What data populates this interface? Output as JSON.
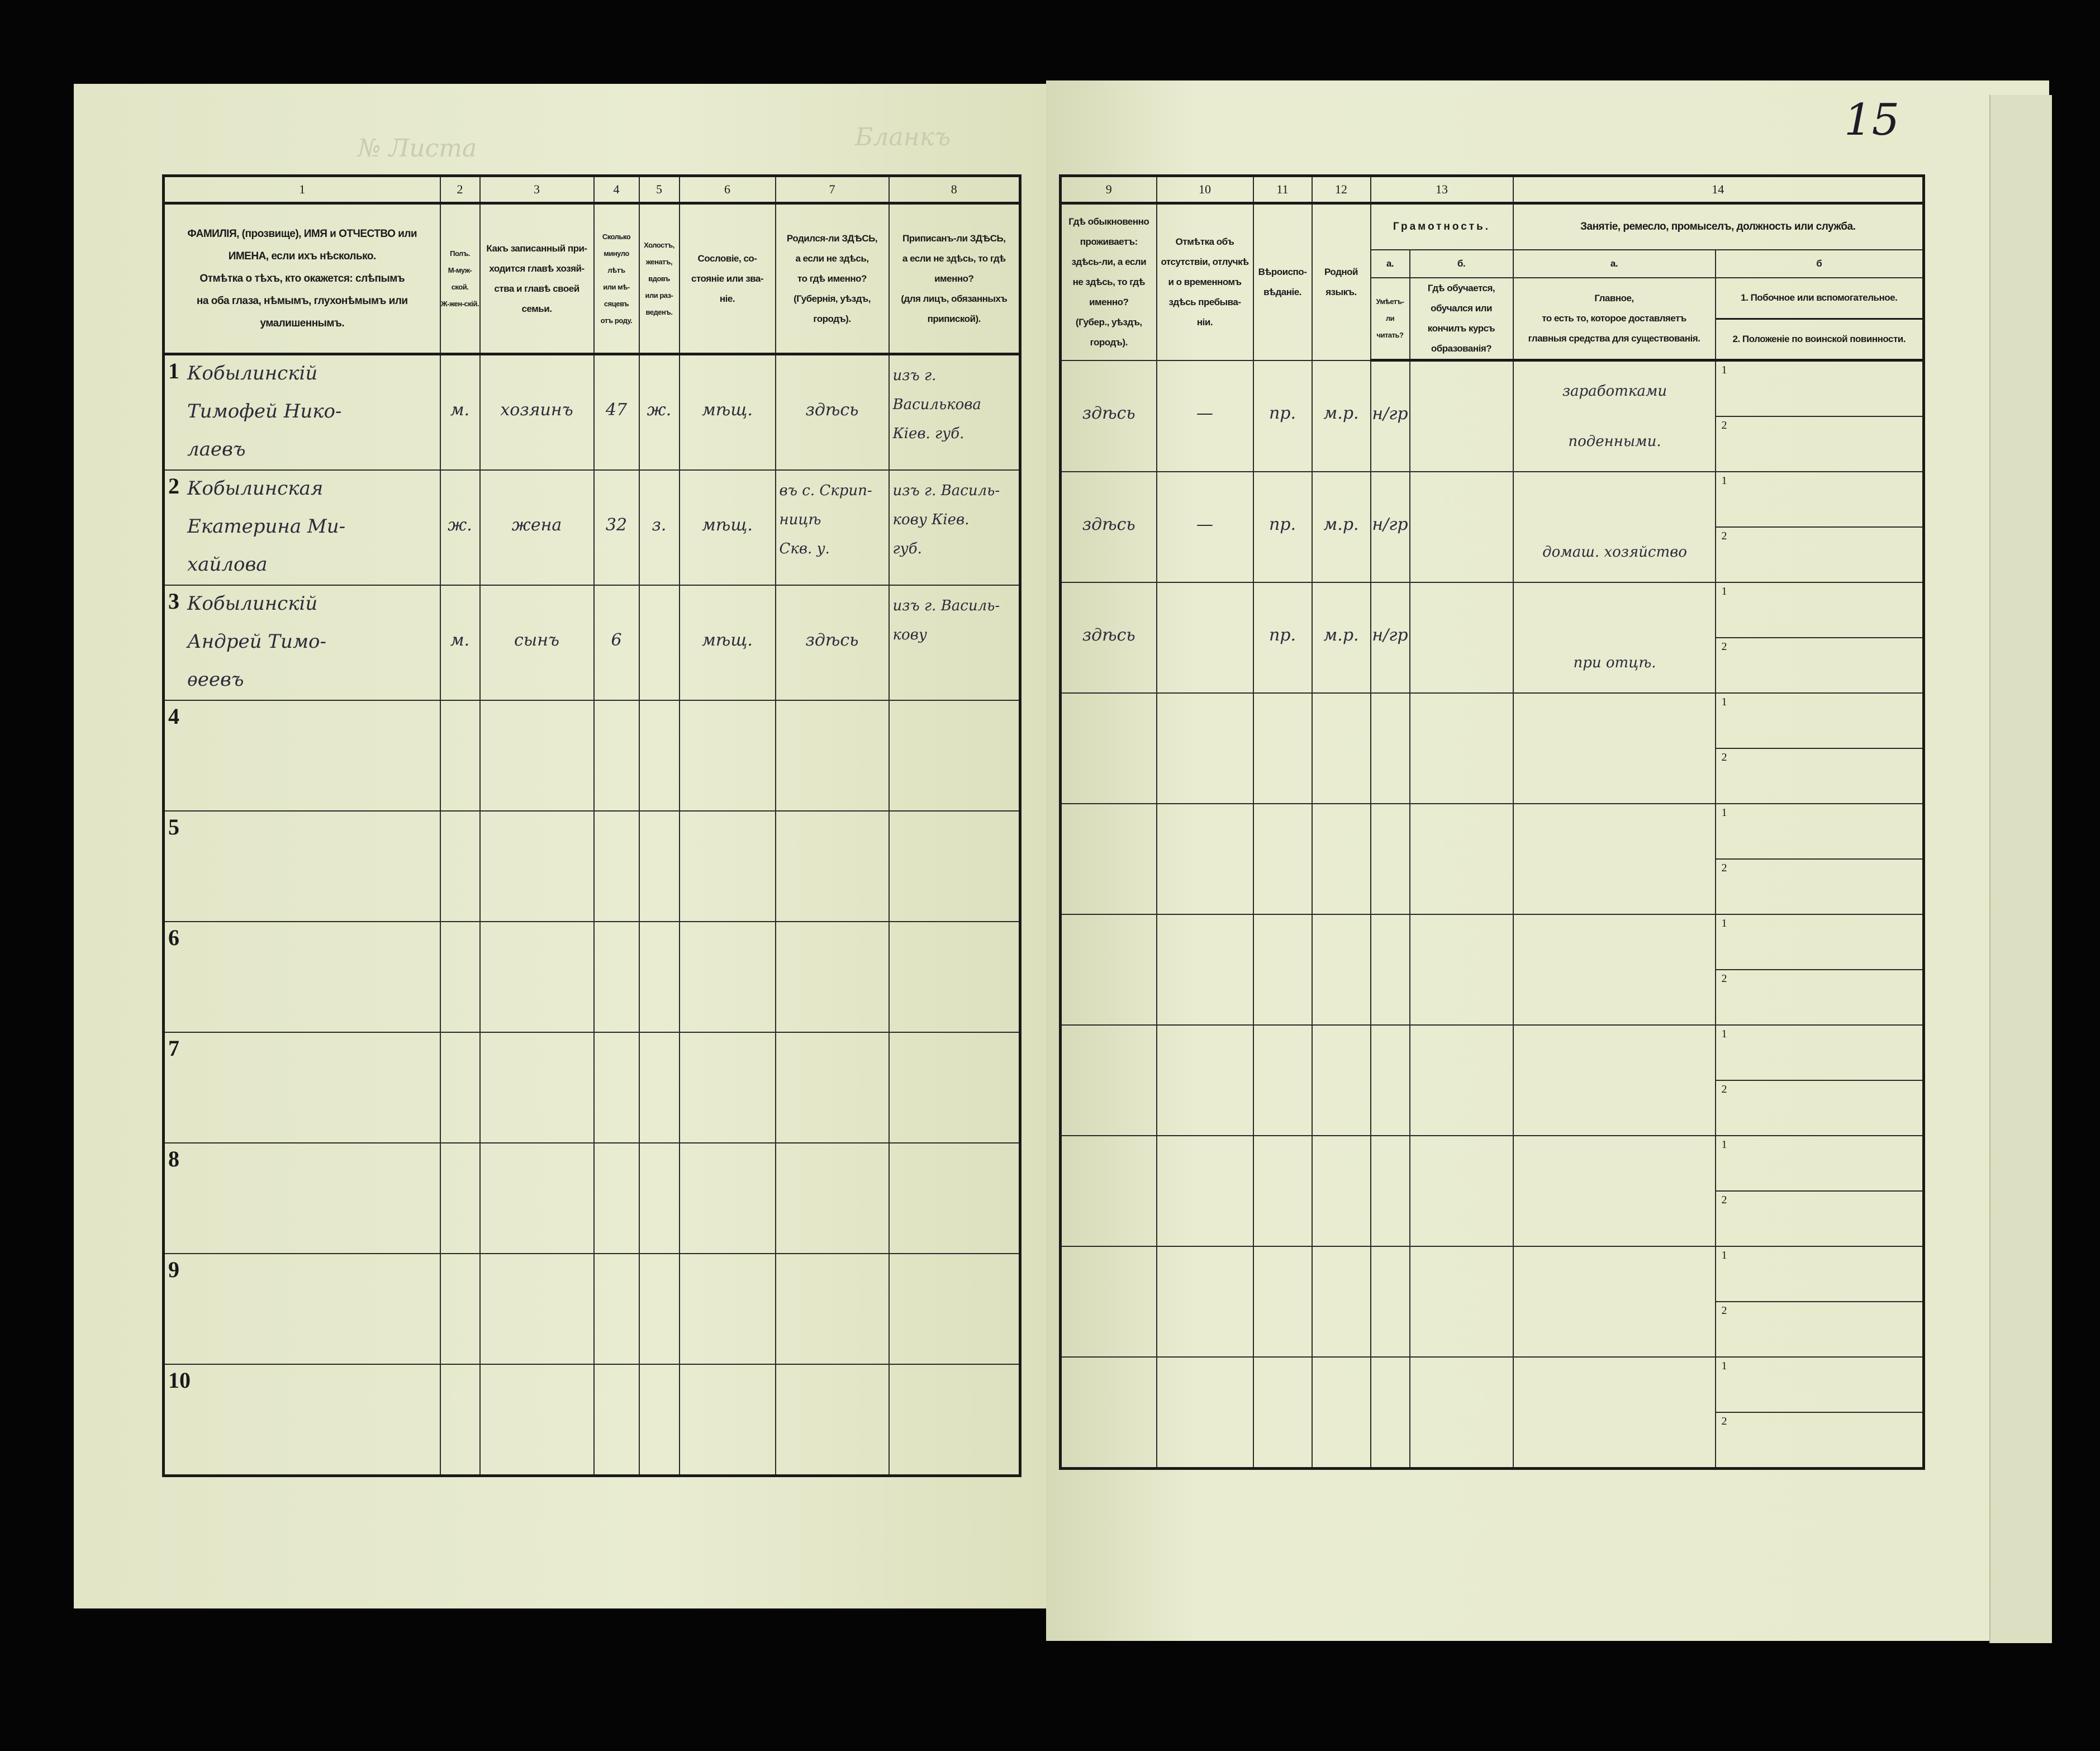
{
  "page_number": "15",
  "faint_header_left": "№ Листа",
  "faint_header_mid": "Бланкъ",
  "left_columns": [
    {
      "num": "1",
      "header": [
        "ФАМИЛІЯ, (прозвище), ИМЯ и ОТЧЕСТВО или",
        "ИМЕНА, если ихъ нѣсколько.",
        "Отмѣтка о тѣхъ, кто окажется: слѣпымъ",
        "на оба глаза, нѣмымъ, глухонѣмымъ или",
        "умалишеннымъ."
      ]
    },
    {
      "num": "2",
      "header": [
        "Полъ.",
        "М-муж-ской.",
        "Ж-жен-скій."
      ]
    },
    {
      "num": "3",
      "header": [
        "Какъ записанный при-",
        "ходится главѣ хозяй-",
        "ства и главѣ своей",
        "семьи."
      ]
    },
    {
      "num": "4",
      "header": [
        "Сколько",
        "минуло",
        "лѣтъ",
        "или мѣ-",
        "сяцевъ",
        "отъ роду."
      ]
    },
    {
      "num": "5",
      "header": [
        "Холостъ,",
        "женатъ,",
        "вдовъ",
        "или раз-",
        "веденъ."
      ]
    },
    {
      "num": "6",
      "header": [
        "Сословіе, со-",
        "стояніе или зва-",
        "ніе."
      ]
    },
    {
      "num": "7",
      "header": [
        "Родился-ли ЗДѢСЬ,",
        "а если не здѣсь,",
        "то гдѣ именно?",
        "(Губернія, уѣздъ, городъ)."
      ]
    },
    {
      "num": "8",
      "header": [
        "Приписанъ-ли ЗДѢСЬ,",
        "а если не здѣсь, то гдѣ",
        "именно?",
        "(для лицъ, обязанныхъ",
        "припиской)."
      ]
    }
  ],
  "right_columns": {
    "c9": {
      "num": "9",
      "header": [
        "Гдѣ обыкновенно",
        "проживаетъ:",
        "здѣсь-ли, а если",
        "не здѣсь, то гдѣ",
        "именно?",
        "(Губер., уѣздъ, городъ)."
      ]
    },
    "c10": {
      "num": "10",
      "header": [
        "Отмѣтка объ",
        "отсутствіи, отлучкѣ",
        "и о временномъ",
        "здѣсь пребыва-",
        "ніи."
      ]
    },
    "c11": {
      "num": "11",
      "header": [
        "Вѣроиспо-",
        "вѣданіе."
      ]
    },
    "c12": {
      "num": "12",
      "header": [
        "Родной",
        "языкъ."
      ]
    },
    "c13": {
      "num": "13",
      "title": "Грамотность.",
      "a_label": "а.",
      "b_label": "б.",
      "a_header": [
        "Умѣетъ-",
        "ли",
        "читать?"
      ],
      "b_header": [
        "Гдѣ обучается,",
        "обучался или",
        "кончилъ курсъ",
        "образованія?"
      ]
    },
    "c14": {
      "num": "14",
      "title": "Занятіе, ремесло, промыселъ, должность или служба.",
      "a_label": "а.",
      "b_label": "б",
      "a_header": [
        "Главное,",
        "то есть то, которое доставляетъ",
        "главныя средства для существованія."
      ],
      "b_header_1": "1. Побочное или вспомогательное.",
      "b_header_2": "2. Положеніе по воинской повинности."
    }
  },
  "sub_labels": {
    "one": "1",
    "two": "2"
  },
  "rows": [
    {
      "n": "1",
      "name": [
        "Кобылинскій",
        "Тимофей Нико-",
        "лаевъ"
      ],
      "sex": "м.",
      "relation": "хозяинъ",
      "age": "47",
      "marital": "ж.",
      "estate": "мѣщ.",
      "born": "здѣсь",
      "registered": [
        "изъ г. Василькова",
        "Кiев. губ."
      ],
      "residence": "здѣсь",
      "absence": "—",
      "religion": "пр.",
      "language": "м.р.",
      "literacy_a": "н/гр",
      "literacy_b": "",
      "occupation_main": [
        "заработками",
        "поденными."
      ]
    },
    {
      "n": "2",
      "name": [
        "Кобылинская",
        "Екатерина Ми-",
        "хайлова"
      ],
      "sex": "ж.",
      "relation": "жена",
      "age": "32",
      "marital": "з.",
      "estate": "мѣщ.",
      "born_lines": [
        "въ с. Скрип-",
        "ницѣ",
        "Скв. у."
      ],
      "registered": [
        "изъ г. Василь-",
        "кову Кiев.",
        "губ."
      ],
      "residence": "здѣсь",
      "absence": "—",
      "religion": "пр.",
      "language": "м.р.",
      "literacy_a": "н/гр",
      "literacy_b": "",
      "occupation_main": [
        "домаш. хозяйство"
      ]
    },
    {
      "n": "3",
      "name": [
        "Кобылинскій",
        "Андрей Тимо-",
        "ѳеевъ"
      ],
      "sex": "м.",
      "relation": "сынъ",
      "age": "6",
      "marital": "",
      "estate": "мѣщ.",
      "born": "здѣсь",
      "registered": [
        "изъ г. Василь-",
        "кову"
      ],
      "residence": "здѣсь",
      "absence": "",
      "religion": "пр.",
      "language": "м.р.",
      "literacy_a": "н/гр",
      "literacy_b": "",
      "occupation_main": [
        "при отцѣ."
      ]
    },
    {
      "n": "4"
    },
    {
      "n": "5"
    },
    {
      "n": "6"
    },
    {
      "n": "7"
    },
    {
      "n": "8"
    },
    {
      "n": "9"
    },
    {
      "n": "10"
    }
  ],
  "colors": {
    "paper": "#e6e9cc",
    "ink": "#2b2b3a",
    "print": "#1a1a1a",
    "background": "#050505"
  }
}
